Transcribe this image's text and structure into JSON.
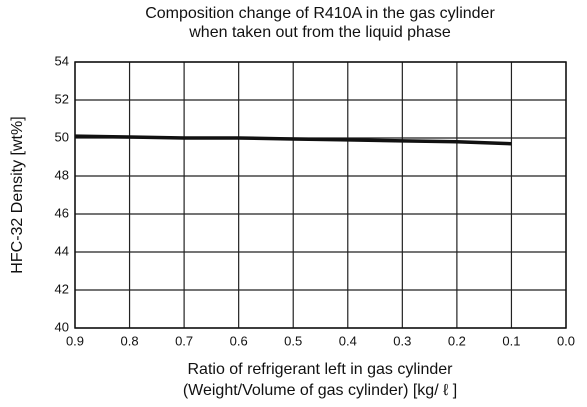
{
  "chart_data": {
    "type": "line",
    "title": [
      "Composition change of R410A in the gas cylinder",
      "when taken out from the liquid phase"
    ],
    "xlabel": [
      "Ratio of refrigerant left in gas cylinder",
      "(Weight/Volume of gas cylinder) [kg/ ℓ ]"
    ],
    "ylabel": "HFC-32 Density [wt%]",
    "x": [
      0.9,
      0.8,
      0.7,
      0.6,
      0.5,
      0.4,
      0.3,
      0.2,
      0.1
    ],
    "series": [
      {
        "name": "R410A",
        "color": "#111111",
        "values": [
          50.1,
          50.05,
          50.0,
          50.0,
          49.95,
          49.9,
          49.85,
          49.8,
          49.7
        ]
      }
    ],
    "xlim": [
      0.9,
      0.0
    ],
    "xticks": [
      0.9,
      0.8,
      0.7,
      0.6,
      0.5,
      0.4,
      0.3,
      0.2,
      0.1,
      {
        "value": 0,
        "label": "0.0"
      }
    ],
    "ylim": [
      40,
      54
    ],
    "yticks": [
      40,
      42,
      44,
      46,
      48,
      50,
      52,
      54
    ],
    "grid": true
  }
}
